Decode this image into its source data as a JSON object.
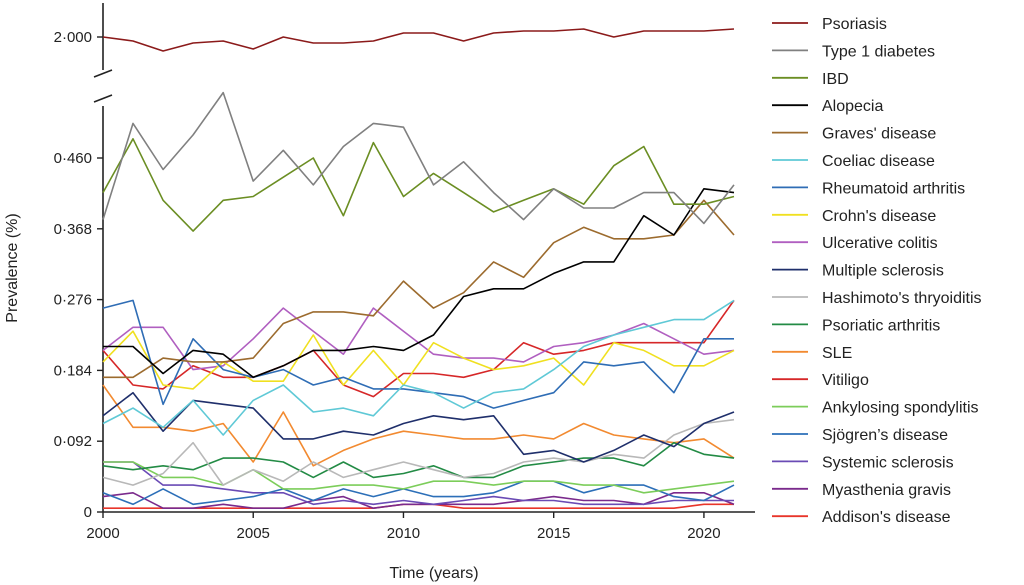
{
  "chart_data": {
    "type": "line",
    "xlabel": "Time (years)",
    "ylabel": "Prevalence (%)",
    "x": [
      2000,
      2001,
      2002,
      2003,
      2004,
      2005,
      2006,
      2007,
      2008,
      2009,
      2010,
      2011,
      2012,
      2013,
      2014,
      2015,
      2016,
      2017,
      2018,
      2019,
      2020,
      2021
    ],
    "xlim": [
      2000,
      2021.7
    ],
    "x_ticks": [
      2000,
      2005,
      2010,
      2015,
      2020
    ],
    "x_tick_labels": [
      "2000",
      "2005",
      "2010",
      "2015",
      "2020"
    ],
    "y_axis_break": true,
    "ylim_lower": [
      0,
      0.56
    ],
    "ylim_upper_visible_tick": 2.0,
    "y_ticks": [
      0,
      0.092,
      0.184,
      0.276,
      0.368,
      0.46,
      2.0
    ],
    "y_tick_labels": [
      "0",
      "0·092",
      "0·184",
      "0·276",
      "0·368",
      "0·460",
      "2·000"
    ],
    "grid": false,
    "legend_placement": "right",
    "series": [
      {
        "name": "Psoriasis",
        "color": "#8b1a1a",
        "values": [
          2.0,
          1.99,
          1.965,
          1.985,
          1.99,
          1.97,
          2.0,
          1.985,
          1.985,
          1.99,
          2.01,
          2.01,
          1.99,
          2.01,
          2.015,
          2.015,
          2.02,
          2.0,
          2.015,
          2.015,
          2.015,
          2.02
        ]
      },
      {
        "name": "Type 1 diabetes",
        "color": "#808080",
        "values": [
          0.38,
          0.505,
          0.445,
          0.49,
          0.545,
          0.43,
          0.47,
          0.425,
          0.475,
          0.505,
          0.5,
          0.425,
          0.455,
          0.415,
          0.38,
          0.42,
          0.395,
          0.395,
          0.415,
          0.415,
          0.375,
          0.425
        ]
      },
      {
        "name": "IBD",
        "color": "#6b8e23",
        "values": [
          0.415,
          0.485,
          0.405,
          0.365,
          0.405,
          0.41,
          0.435,
          0.46,
          0.385,
          0.48,
          0.41,
          0.44,
          0.415,
          0.39,
          0.405,
          0.42,
          0.4,
          0.45,
          0.475,
          0.4,
          0.4,
          0.41
        ]
      },
      {
        "name": "Alopecia",
        "color": "#000000",
        "values": [
          0.215,
          0.215,
          0.18,
          0.21,
          0.205,
          0.175,
          0.19,
          0.21,
          0.21,
          0.215,
          0.21,
          0.23,
          0.28,
          0.29,
          0.29,
          0.31,
          0.325,
          0.325,
          0.385,
          0.36,
          0.42,
          0.415
        ]
      },
      {
        "name": "Graves' disease",
        "color": "#9c6b2e",
        "values": [
          0.175,
          0.175,
          0.2,
          0.195,
          0.195,
          0.2,
          0.245,
          0.26,
          0.26,
          0.255,
          0.3,
          0.265,
          0.285,
          0.325,
          0.305,
          0.35,
          0.37,
          0.355,
          0.355,
          0.36,
          0.405,
          0.36
        ]
      },
      {
        "name": "Coeliac disease",
        "color": "#5fc9d6",
        "values": [
          0.115,
          0.135,
          0.11,
          0.145,
          0.1,
          0.145,
          0.165,
          0.13,
          0.135,
          0.125,
          0.165,
          0.155,
          0.135,
          0.155,
          0.16,
          0.185,
          0.215,
          0.23,
          0.24,
          0.25,
          0.25,
          0.275
        ]
      },
      {
        "name": "Rheumatoid arthritis",
        "color": "#2f6db5",
        "values": [
          0.265,
          0.275,
          0.14,
          0.225,
          0.185,
          0.175,
          0.185,
          0.165,
          0.175,
          0.16,
          0.16,
          0.155,
          0.15,
          0.135,
          0.145,
          0.155,
          0.195,
          0.19,
          0.195,
          0.155,
          0.225,
          0.225
        ]
      },
      {
        "name": "Crohn's disease",
        "color": "#f0e020",
        "values": [
          0.195,
          0.235,
          0.165,
          0.16,
          0.195,
          0.17,
          0.17,
          0.23,
          0.165,
          0.21,
          0.165,
          0.22,
          0.2,
          0.185,
          0.19,
          0.2,
          0.165,
          0.22,
          0.21,
          0.19,
          0.19,
          0.21
        ]
      },
      {
        "name": "Ulcerative colitis",
        "color": "#b05fc0",
        "values": [
          0.21,
          0.24,
          0.24,
          0.185,
          0.19,
          0.225,
          0.265,
          0.235,
          0.205,
          0.265,
          0.235,
          0.205,
          0.2,
          0.2,
          0.195,
          0.215,
          0.22,
          0.23,
          0.245,
          0.225,
          0.205,
          0.21
        ]
      },
      {
        "name": "Multiple sclerosis",
        "color": "#1f2f6b",
        "values": [
          0.125,
          0.155,
          0.105,
          0.145,
          0.14,
          0.135,
          0.095,
          0.095,
          0.105,
          0.1,
          0.115,
          0.125,
          0.12,
          0.125,
          0.075,
          0.08,
          0.065,
          0.08,
          0.1,
          0.085,
          0.115,
          0.13
        ]
      },
      {
        "name": "Hashimoto's thryoiditis",
        "color": "#b8b8b8",
        "values": [
          0.045,
          0.035,
          0.05,
          0.09,
          0.035,
          0.055,
          0.04,
          0.065,
          0.045,
          0.055,
          0.065,
          0.055,
          0.045,
          0.05,
          0.065,
          0.07,
          0.065,
          0.075,
          0.07,
          0.1,
          0.115,
          0.12
        ]
      },
      {
        "name": "Psoriatic arthritis",
        "color": "#238b45",
        "values": [
          0.06,
          0.055,
          0.06,
          0.055,
          0.07,
          0.07,
          0.065,
          0.045,
          0.065,
          0.045,
          0.05,
          0.06,
          0.045,
          0.045,
          0.06,
          0.065,
          0.07,
          0.07,
          0.06,
          0.09,
          0.075,
          0.07
        ]
      },
      {
        "name": "SLE",
        "color": "#f28a30",
        "values": [
          0.165,
          0.11,
          0.11,
          0.105,
          0.115,
          0.065,
          0.13,
          0.06,
          0.08,
          0.095,
          0.105,
          0.1,
          0.095,
          0.095,
          0.1,
          0.095,
          0.115,
          0.1,
          0.095,
          0.09,
          0.095,
          0.07
        ]
      },
      {
        "name": "Vitiligo",
        "color": "#d62728",
        "values": [
          0.21,
          0.165,
          0.16,
          0.19,
          0.175,
          0.175,
          0.19,
          0.21,
          0.165,
          0.15,
          0.18,
          0.18,
          0.175,
          0.185,
          0.22,
          0.205,
          0.21,
          0.22,
          0.22,
          0.22,
          0.22,
          0.275
        ]
      },
      {
        "name": "Ankylosing spondylitis",
        "color": "#7ccd5a",
        "values": [
          0.065,
          0.065,
          0.045,
          0.045,
          0.035,
          0.055,
          0.03,
          0.03,
          0.035,
          0.035,
          0.03,
          0.04,
          0.04,
          0.035,
          0.04,
          0.04,
          0.035,
          0.035,
          0.025,
          0.03,
          0.035,
          0.04
        ]
      },
      {
        "name": "Sjögren’s disease",
        "color": "#2c6fb8",
        "values": [
          0.025,
          0.01,
          0.03,
          0.01,
          0.015,
          0.02,
          0.03,
          0.015,
          0.03,
          0.02,
          0.03,
          0.02,
          0.02,
          0.025,
          0.04,
          0.04,
          0.025,
          0.035,
          0.035,
          0.02,
          0.015,
          0.035
        ]
      },
      {
        "name": "Systemic sclerosis",
        "color": "#6a4bb5",
        "values": [
          0.065,
          0.065,
          0.035,
          0.035,
          0.03,
          0.025,
          0.025,
          0.01,
          0.015,
          0.01,
          0.015,
          0.01,
          0.015,
          0.02,
          0.015,
          0.015,
          0.01,
          0.01,
          0.01,
          0.015,
          0.015,
          0.015
        ]
      },
      {
        "name": "Myasthenia gravis",
        "color": "#7a2a8c",
        "values": [
          0.02,
          0.025,
          0.005,
          0.005,
          0.01,
          0.005,
          0.005,
          0.015,
          0.02,
          0.005,
          0.01,
          0.01,
          0.01,
          0.01,
          0.015,
          0.02,
          0.015,
          0.015,
          0.01,
          0.025,
          0.025,
          0.01
        ]
      },
      {
        "name": "Addison's disease",
        "color": "#e8352a",
        "values": [
          0.005,
          0.005,
          0.005,
          0.005,
          0.005,
          0.005,
          0.005,
          0.005,
          0.005,
          0.005,
          0.01,
          0.01,
          0.005,
          0.005,
          0.005,
          0.005,
          0.005,
          0.005,
          0.005,
          0.005,
          0.01,
          0.01
        ]
      }
    ]
  }
}
